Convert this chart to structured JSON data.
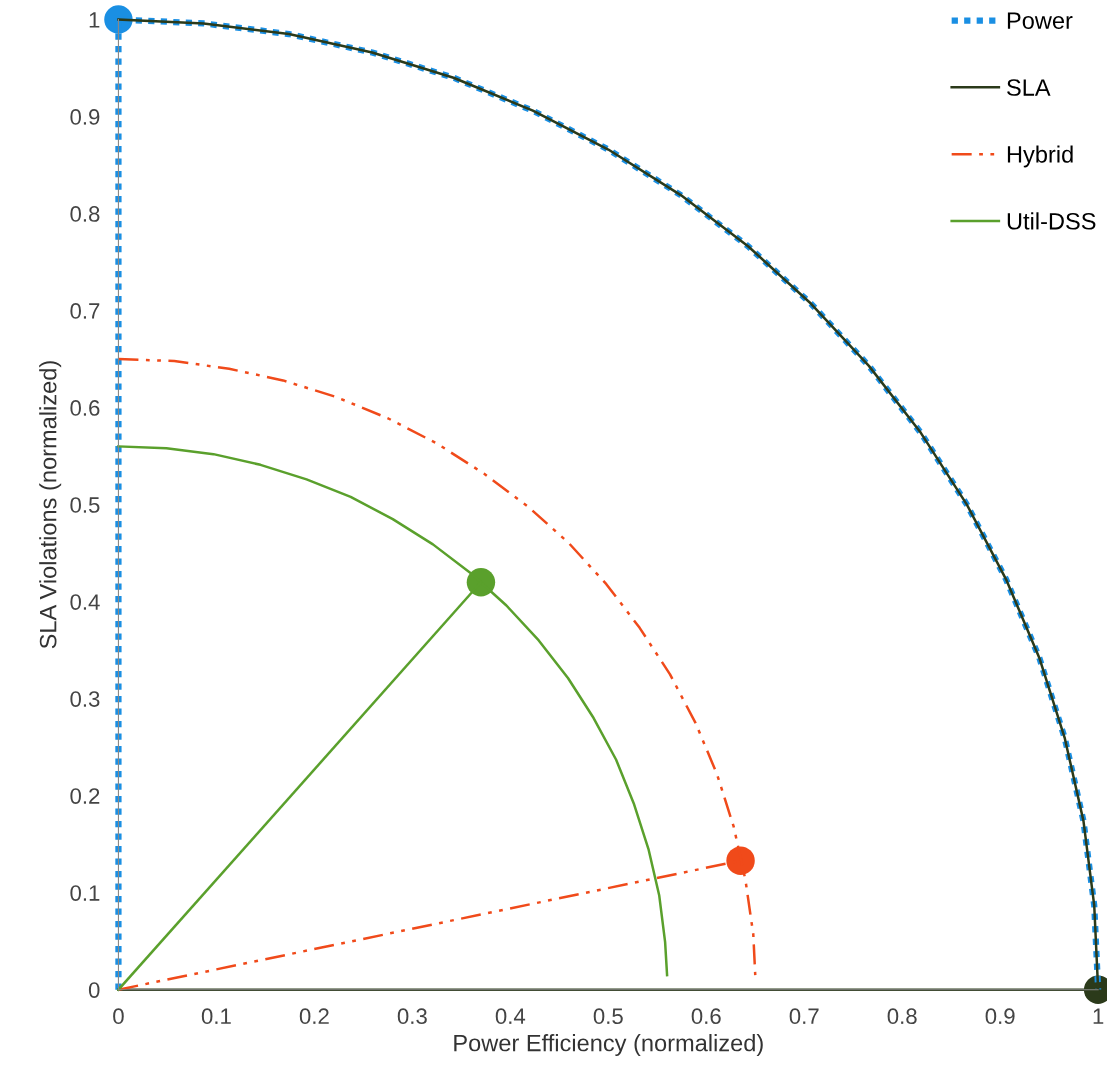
{
  "chart_data": {
    "type": "line",
    "xlabel": "Power Efficiency (normalized)",
    "ylabel": "SLA Violations (normalized)",
    "xlim": [
      0,
      1
    ],
    "ylim": [
      0,
      1
    ],
    "xticks": [
      0,
      0.1,
      0.2,
      0.3,
      0.4,
      0.5,
      0.6,
      0.7,
      0.8,
      0.9,
      1
    ],
    "yticks": [
      0,
      0.1,
      0.2,
      0.3,
      0.4,
      0.5,
      0.6,
      0.7,
      0.8,
      0.9,
      1
    ],
    "grid": false,
    "legend": "top right",
    "series": [
      {
        "name": "Power",
        "color": "#1a8fe3",
        "line_style": "dotted",
        "x": [
          0,
          0,
          0.087,
          0.174,
          0.259,
          0.342,
          0.423,
          0.5,
          0.574,
          0.643,
          0.707,
          0.766,
          0.819,
          0.866,
          0.906,
          0.94,
          0.966,
          0.985,
          0.996,
          1
        ],
        "values": [
          0,
          1,
          0.996,
          0.985,
          0.966,
          0.94,
          0.906,
          0.866,
          0.819,
          0.766,
          0.707,
          0.643,
          0.574,
          0.5,
          0.423,
          0.342,
          0.259,
          0.174,
          0.087,
          0
        ]
      },
      {
        "name": "SLA",
        "color": "#2b3a1a",
        "line_style": "solid",
        "x": [
          0,
          0.087,
          0.174,
          0.259,
          0.342,
          0.423,
          0.5,
          0.574,
          0.643,
          0.707,
          0.766,
          0.819,
          0.866,
          0.906,
          0.94,
          0.966,
          0.985,
          0.996,
          1,
          0
        ],
        "values": [
          1,
          0.996,
          0.985,
          0.966,
          0.94,
          0.906,
          0.866,
          0.819,
          0.766,
          0.707,
          0.643,
          0.574,
          0.5,
          0.423,
          0.342,
          0.259,
          0.174,
          0.087,
          0,
          0
        ]
      },
      {
        "name": "Hybrid",
        "color": "#f04a1a",
        "line_style": "dashed",
        "x": [
          0,
          0.057,
          0.113,
          0.168,
          0.222,
          0.275,
          0.325,
          0.373,
          0.418,
          0.46,
          0.498,
          0.532,
          0.563,
          0.589,
          0.611,
          0.628,
          0.64,
          0.648,
          0.65
        ],
        "values": [
          0.65,
          0.648,
          0.64,
          0.628,
          0.611,
          0.589,
          0.563,
          0.532,
          0.498,
          0.46,
          0.418,
          0.373,
          0.325,
          0.275,
          0.222,
          0.168,
          0.113,
          0.057,
          0.015
        ]
      },
      {
        "name": "Util-DSS",
        "color": "#5aa02c",
        "line_style": "solid",
        "x": [
          0,
          0.049,
          0.097,
          0.145,
          0.192,
          0.237,
          0.28,
          0.321,
          0.36,
          0.396,
          0.429,
          0.459,
          0.485,
          0.508,
          0.526,
          0.541,
          0.552,
          0.558,
          0.56
        ],
        "values": [
          0.56,
          0.558,
          0.552,
          0.541,
          0.526,
          0.508,
          0.485,
          0.459,
          0.429,
          0.396,
          0.36,
          0.321,
          0.28,
          0.237,
          0.192,
          0.145,
          0.097,
          0.049,
          0.015
        ]
      },
      {
        "color": "#f04a1a",
        "line_style": "dashed",
        "x": [
          0,
          0.635
        ],
        "values": [
          0,
          0.133
        ]
      },
      {
        "color": "#5aa02c",
        "line_style": "solid",
        "x": [
          0,
          0.37
        ],
        "values": [
          0,
          0.42
        ]
      },
      {
        "type": "scatter",
        "marker": "circle",
        "color": "#1a8fe3",
        "x": [
          0
        ],
        "values": [
          1
        ]
      },
      {
        "type": "scatter",
        "marker": "circle",
        "color": "#2b3a1a",
        "x": [
          1
        ],
        "values": [
          0
        ]
      },
      {
        "type": "scatter",
        "marker": "circle",
        "color": "#f04a1a",
        "x": [
          0.635
        ],
        "values": [
          0.133
        ]
      },
      {
        "type": "scatter",
        "marker": "circle",
        "color": "#5aa02c",
        "x": [
          0.37
        ],
        "values": [
          0.42
        ]
      }
    ]
  }
}
